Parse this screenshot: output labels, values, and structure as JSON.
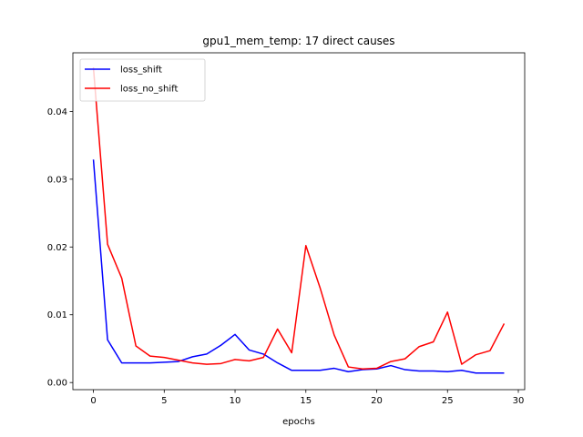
{
  "chart_data": {
    "type": "line",
    "title": "gpu1_mem_temp: 17 direct causes",
    "xlabel": "epochs",
    "ylabel": "",
    "xlim": [
      -1.45,
      30.45
    ],
    "ylim": [
      -0.00105,
      0.04865
    ],
    "xticks": [
      0,
      5,
      10,
      15,
      20,
      25,
      30
    ],
    "xtick_labels": [
      "0",
      "5",
      "10",
      "15",
      "20",
      "25",
      "30"
    ],
    "yticks": [
      0.0,
      0.01,
      0.02,
      0.03,
      0.04
    ],
    "ytick_labels": [
      "0.00",
      "0.01",
      "0.02",
      "0.03",
      "0.04"
    ],
    "grid": false,
    "legend_position": "top-left",
    "x": [
      0,
      1,
      2,
      3,
      4,
      5,
      6,
      7,
      8,
      9,
      10,
      11,
      12,
      13,
      14,
      15,
      16,
      17,
      18,
      19,
      20,
      21,
      22,
      23,
      24,
      25,
      26,
      27,
      28,
      29
    ],
    "series": [
      {
        "name": "loss_shift",
        "color": "#0000ff",
        "values": [
          0.0329,
          0.0063,
          0.0029,
          0.0029,
          0.0029,
          0.003,
          0.0031,
          0.0038,
          0.0042,
          0.0055,
          0.0071,
          0.0048,
          0.0042,
          0.0029,
          0.0018,
          0.0018,
          0.0018,
          0.0021,
          0.0016,
          0.0019,
          0.002,
          0.0025,
          0.0019,
          0.0017,
          0.0017,
          0.0016,
          0.0018,
          0.0014,
          0.0014,
          0.0014
        ]
      },
      {
        "name": "loss_no_shift",
        "color": "#ff0000",
        "values": [
          0.0465,
          0.0204,
          0.0154,
          0.0054,
          0.0039,
          0.0037,
          0.0033,
          0.0029,
          0.0027,
          0.0028,
          0.0034,
          0.0032,
          0.0037,
          0.0079,
          0.0044,
          0.0202,
          0.014,
          0.007,
          0.0023,
          0.002,
          0.0021,
          0.0031,
          0.0035,
          0.0053,
          0.006,
          0.0104,
          0.0027,
          0.0041,
          0.0047,
          0.0087
        ]
      }
    ]
  }
}
